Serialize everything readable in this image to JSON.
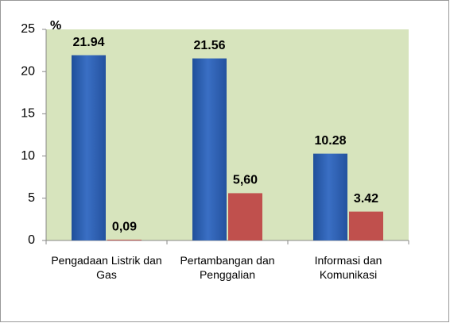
{
  "chart_data": {
    "type": "bar",
    "y_label": "%",
    "categories": [
      "Pengadaan Listrik dan Gas",
      "Pertambangan dan Penggalian",
      "Informasi dan Komunikasi"
    ],
    "series": [
      {
        "color": "#3a6fc4",
        "values": [
          21.94,
          21.56,
          10.28
        ],
        "value_labels": [
          "21.94",
          "21.56",
          "10.28"
        ]
      },
      {
        "color": "#c0504d",
        "values": [
          0.09,
          5.6,
          3.42
        ],
        "value_labels": [
          "0,09",
          "5,60",
          "3.42"
        ]
      }
    ],
    "ylim": [
      0,
      25
    ],
    "yticks": [
      0,
      5,
      10,
      15,
      20,
      25
    ],
    "grid": false,
    "plot_background": "#d7e4bd"
  }
}
